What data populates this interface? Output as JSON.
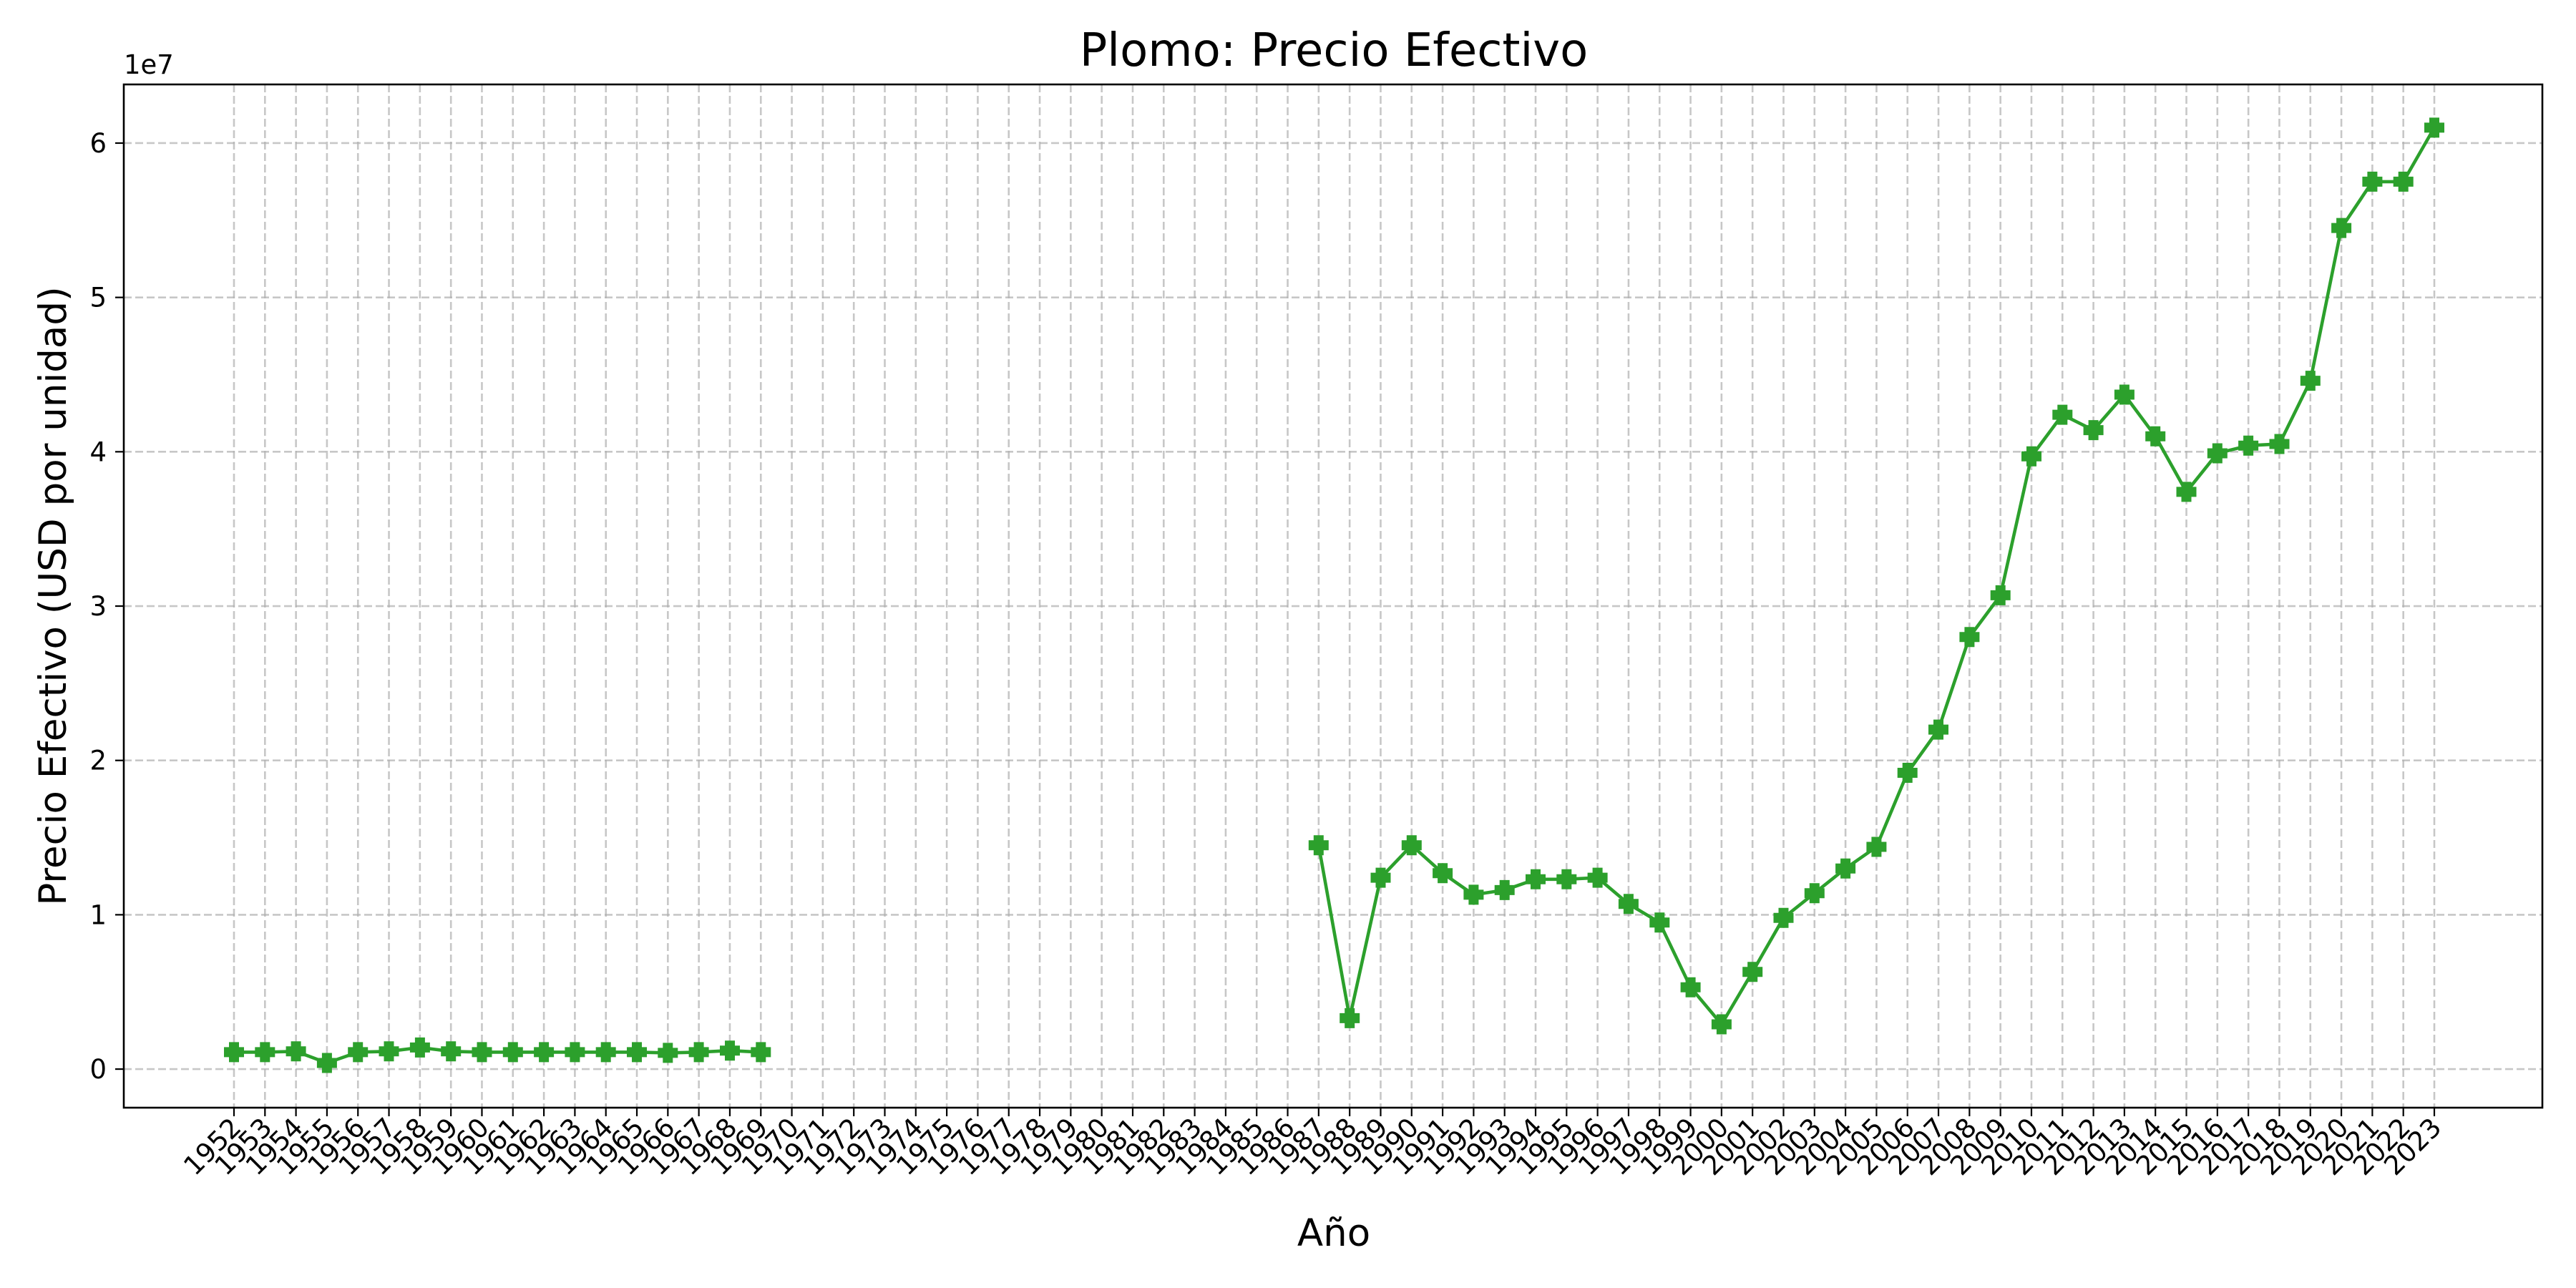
{
  "chart_data": {
    "type": "line",
    "title": "Plomo: Precio Efectivo",
    "xlabel": "Año",
    "ylabel": "Precio Efectivo (USD por unidad)",
    "y_offset_label": "1e7",
    "y_scale_factor": 10000000,
    "ylim": [
      -2500000,
      63800000
    ],
    "yticks": [
      0,
      10000000,
      20000000,
      30000000,
      40000000,
      50000000,
      60000000
    ],
    "ytick_labels": [
      "0",
      "1",
      "2",
      "3",
      "4",
      "5",
      "6"
    ],
    "grid": true,
    "color": "#2ca02c",
    "marker": "plus-filled",
    "x": [
      "1952",
      "1953",
      "1954",
      "1955",
      "1956",
      "1957",
      "1958",
      "1959",
      "1960",
      "1961",
      "1962",
      "1963",
      "1964",
      "1965",
      "1966",
      "1967",
      "1968",
      "1969",
      "1970",
      "1971",
      "1972",
      "1973",
      "1974",
      "1975",
      "1976",
      "1977",
      "1978",
      "1979",
      "1980",
      "1981",
      "1982",
      "1983",
      "1984",
      "1985",
      "1986",
      "1987",
      "1988",
      "1989",
      "1990",
      "1991",
      "1992",
      "1993",
      "1994",
      "1995",
      "1996",
      "1997",
      "1998",
      "1999",
      "2000",
      "2001",
      "2002",
      "2003",
      "2004",
      "2005",
      "2006",
      "2007",
      "2008",
      "2009",
      "2010",
      "2011",
      "2012",
      "2013",
      "2014",
      "2015",
      "2016",
      "2017",
      "2018",
      "2019",
      "2020",
      "2021",
      "2022",
      "2023"
    ],
    "values": [
      1100000,
      1100000,
      1150000,
      400000,
      1100000,
      1150000,
      1400000,
      1150000,
      1100000,
      1100000,
      1100000,
      1100000,
      1100000,
      1100000,
      1050000,
      1100000,
      1200000,
      1100000,
      null,
      null,
      null,
      null,
      null,
      null,
      null,
      null,
      null,
      null,
      null,
      null,
      null,
      null,
      null,
      null,
      null,
      14500000,
      3300000,
      12400000,
      14500000,
      12700000,
      11300000,
      11600000,
      12300000,
      12300000,
      12400000,
      10700000,
      9500000,
      5300000,
      2900000,
      6300000,
      9800000,
      11400000,
      13000000,
      14400000,
      19200000,
      22000000,
      28000000,
      30700000,
      39700000,
      42400000,
      41400000,
      43700000,
      41000000,
      37400000,
      39900000,
      40400000,
      40500000,
      44600000,
      54500000,
      57500000,
      57500000,
      61000000
    ]
  }
}
